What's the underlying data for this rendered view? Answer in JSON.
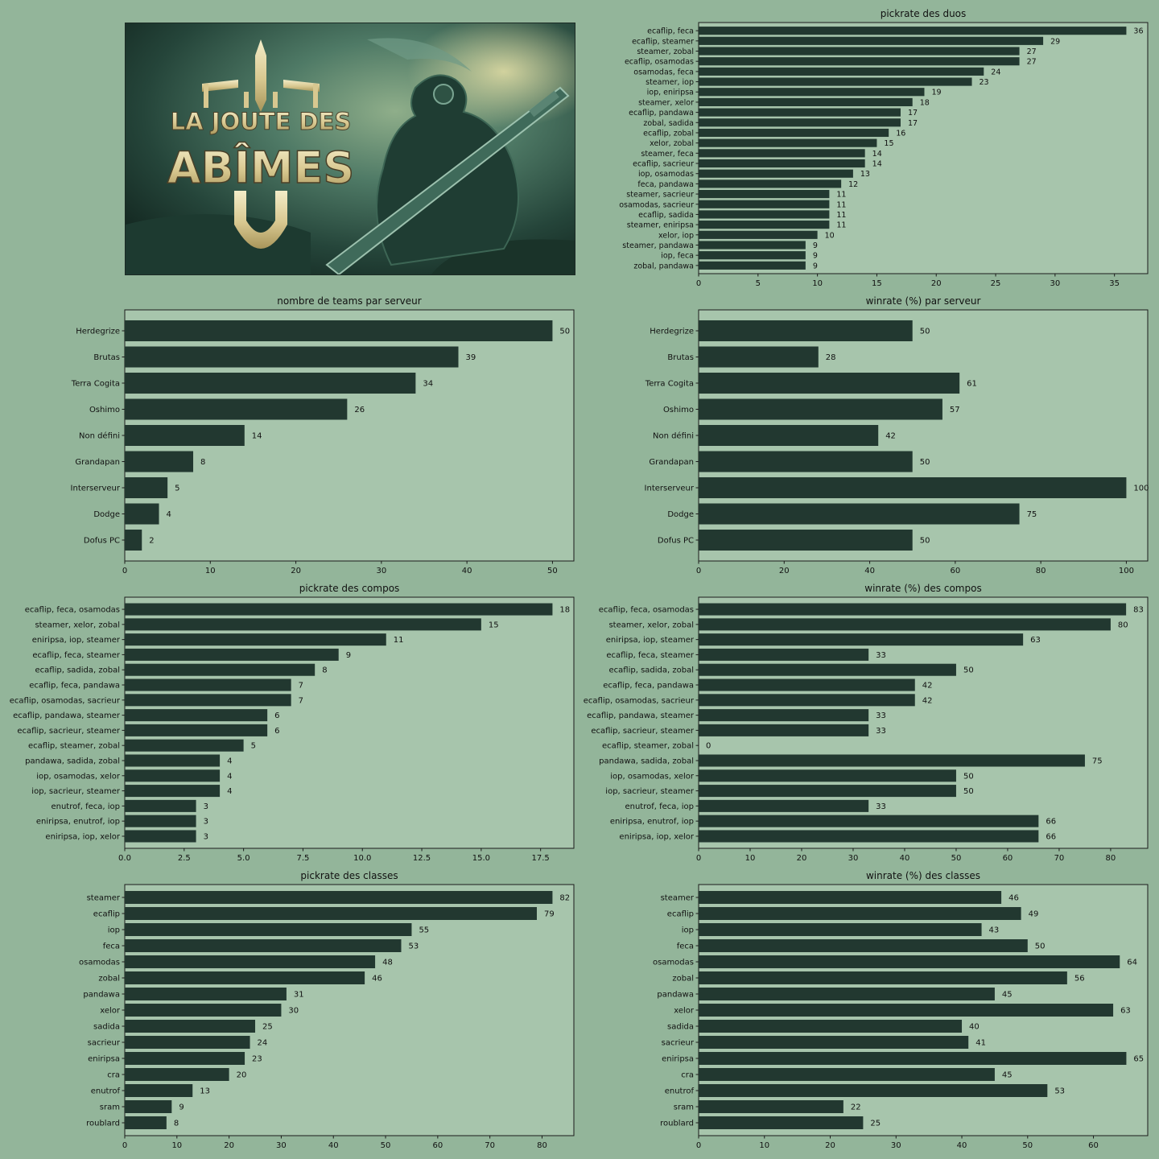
{
  "banner": {
    "logo_line1": "LA JOUTE DES",
    "logo_line2": "ABÎMES"
  },
  "colors": {
    "figure_bg": "#93b59a",
    "plot_bg": "#a7c5ac",
    "bar": "#223830",
    "text": "#111111"
  },
  "chart_data": [
    {
      "id": "duos-pickrate",
      "type": "bar",
      "orientation": "horizontal",
      "title": "pickrate des duos",
      "categories": [
        "ecaflip, feca",
        "ecaflip, steamer",
        "steamer, zobal",
        "ecaflip, osamodas",
        "osamodas, feca",
        "steamer, iop",
        "iop, eniripsa",
        "steamer, xelor",
        "ecaflip, pandawa",
        "zobal, sadida",
        "ecaflip, zobal",
        "xelor, zobal",
        "steamer, feca",
        "ecaflip, sacrieur",
        "iop, osamodas",
        "feca, pandawa",
        "steamer, sacrieur",
        "osamodas, sacrieur",
        "ecaflip, sadida",
        "steamer, eniripsa",
        "xelor, iop",
        "steamer, pandawa",
        "iop, feca",
        "zobal, pandawa"
      ],
      "values": [
        36,
        29,
        27,
        27,
        24,
        23,
        19,
        18,
        17,
        17,
        16,
        15,
        14,
        14,
        13,
        12,
        11,
        11,
        11,
        11,
        10,
        9,
        9,
        9
      ],
      "value_labels": [
        "36",
        "29",
        "27",
        "27",
        "24",
        "23",
        "19",
        "18",
        "17",
        "17",
        "16",
        "15",
        "14",
        "14",
        "13",
        "12",
        "11",
        "11",
        "11",
        "11",
        "10",
        "9",
        "9",
        "9"
      ],
      "xlim": [
        0,
        37.8
      ],
      "xticks": [
        0,
        5,
        10,
        15,
        20,
        25,
        30,
        35
      ],
      "xtick_labels": [
        "0",
        "5",
        "10",
        "15",
        "20",
        "25",
        "30",
        "35"
      ],
      "grid": false
    },
    {
      "id": "teams-per-server",
      "type": "bar",
      "orientation": "horizontal",
      "title": "nombre de teams par serveur",
      "categories": [
        "Herdegrize",
        "Brutas",
        "Terra Cogita",
        "Oshimo",
        "Non défini",
        "Grandapan",
        "Interserveur",
        "Dodge",
        "Dofus PC"
      ],
      "values": [
        50,
        39,
        34,
        26,
        14,
        8,
        5,
        4,
        2
      ],
      "value_labels": [
        "50",
        "39",
        "34",
        "26",
        "14",
        "8",
        "5",
        "4",
        "2"
      ],
      "xlim": [
        0,
        52.5
      ],
      "xticks": [
        0,
        10,
        20,
        30,
        40,
        50
      ],
      "xtick_labels": [
        "0",
        "10",
        "20",
        "30",
        "40",
        "50"
      ],
      "grid": false
    },
    {
      "id": "winrate-per-server",
      "type": "bar",
      "orientation": "horizontal",
      "title": "winrate (%) par serveur",
      "categories": [
        "Herdegrize",
        "Brutas",
        "Terra Cogita",
        "Oshimo",
        "Non défini",
        "Grandapan",
        "Interserveur",
        "Dodge",
        "Dofus PC"
      ],
      "values": [
        50,
        28,
        61,
        57,
        42,
        50,
        100,
        75,
        50
      ],
      "value_labels": [
        "50",
        "28",
        "61",
        "57",
        "42",
        "50",
        "100",
        "75",
        "50"
      ],
      "xlim": [
        0,
        105
      ],
      "xticks": [
        0,
        20,
        40,
        60,
        80,
        100
      ],
      "xtick_labels": [
        "0",
        "20",
        "40",
        "60",
        "80",
        "100"
      ],
      "grid": false
    },
    {
      "id": "compos-pickrate",
      "type": "bar",
      "orientation": "horizontal",
      "title": "pickrate des compos",
      "categories": [
        "ecaflip, feca, osamodas",
        "steamer, xelor, zobal",
        "eniripsa, iop, steamer",
        "ecaflip, feca, steamer",
        "ecaflip, sadida, zobal",
        "ecaflip, feca, pandawa",
        "ecaflip, osamodas, sacrieur",
        "ecaflip, pandawa, steamer",
        "ecaflip, sacrieur, steamer",
        "ecaflip, steamer, zobal",
        "pandawa, sadida, zobal",
        "iop, osamodas, xelor",
        "iop, sacrieur, steamer",
        "enutrof, feca, iop",
        "eniripsa, enutrof, iop",
        "eniripsa, iop, xelor"
      ],
      "values": [
        18,
        15,
        11,
        9,
        8,
        7,
        7,
        6,
        6,
        5,
        4,
        4,
        4,
        3,
        3,
        3
      ],
      "value_labels": [
        "18",
        "15",
        "11",
        "9",
        "8",
        "7",
        "7",
        "6",
        "6",
        "5",
        "4",
        "4",
        "4",
        "3",
        "3",
        "3"
      ],
      "xlim": [
        0,
        18.9
      ],
      "xticks": [
        0,
        2.5,
        5,
        7.5,
        10,
        12.5,
        15,
        17.5
      ],
      "xtick_labels": [
        "0.0",
        "2.5",
        "5.0",
        "7.5",
        "10.0",
        "12.5",
        "15.0",
        "17.5"
      ],
      "grid": false
    },
    {
      "id": "compos-winrate",
      "type": "bar",
      "orientation": "horizontal",
      "title": "winrate (%) des compos",
      "categories": [
        "ecaflip, feca, osamodas",
        "steamer, xelor, zobal",
        "eniripsa, iop, steamer",
        "ecaflip, feca, steamer",
        "ecaflip, sadida, zobal",
        "ecaflip, feca, pandawa",
        "ecaflip, osamodas, sacrieur",
        "ecaflip, pandawa, steamer",
        "ecaflip, sacrieur, steamer",
        "ecaflip, steamer, zobal",
        "pandawa, sadida, zobal",
        "iop, osamodas, xelor",
        "iop, sacrieur, steamer",
        "enutrof, feca, iop",
        "eniripsa, enutrof, iop",
        "eniripsa, iop, xelor"
      ],
      "values": [
        83,
        80,
        63,
        33,
        50,
        42,
        42,
        33,
        33,
        0,
        75,
        50,
        50,
        33,
        66,
        66
      ],
      "value_labels": [
        "83",
        "80",
        "63",
        "33",
        "50",
        "42",
        "42",
        "33",
        "33",
        "0",
        "75",
        "50",
        "50",
        "33",
        "66",
        "66"
      ],
      "xlim": [
        0,
        87.2
      ],
      "xticks": [
        0,
        10,
        20,
        30,
        40,
        50,
        60,
        70,
        80
      ],
      "xtick_labels": [
        "0",
        "10",
        "20",
        "30",
        "40",
        "50",
        "60",
        "70",
        "80"
      ],
      "grid": false
    },
    {
      "id": "classes-pickrate",
      "type": "bar",
      "orientation": "horizontal",
      "title": "pickrate des classes",
      "categories": [
        "steamer",
        "ecaflip",
        "iop",
        "feca",
        "osamodas",
        "zobal",
        "pandawa",
        "xelor",
        "sadida",
        "sacrieur",
        "eniripsa",
        "cra",
        "enutrof",
        "sram",
        "roublard"
      ],
      "values": [
        82,
        79,
        55,
        53,
        48,
        46,
        31,
        30,
        25,
        24,
        23,
        20,
        13,
        9,
        8
      ],
      "value_labels": [
        "82",
        "79",
        "55",
        "53",
        "48",
        "46",
        "31",
        "30",
        "25",
        "24",
        "23",
        "20",
        "13",
        "9",
        "8"
      ],
      "xlim": [
        0,
        86.1
      ],
      "xticks": [
        0,
        10,
        20,
        30,
        40,
        50,
        60,
        70,
        80
      ],
      "xtick_labels": [
        "0",
        "10",
        "20",
        "30",
        "40",
        "50",
        "60",
        "70",
        "80"
      ],
      "grid": false
    },
    {
      "id": "classes-winrate",
      "type": "bar",
      "orientation": "horizontal",
      "title": "winrate (%) des classes",
      "categories": [
        "steamer",
        "ecaflip",
        "iop",
        "feca",
        "osamodas",
        "zobal",
        "pandawa",
        "xelor",
        "sadida",
        "sacrieur",
        "eniripsa",
        "cra",
        "enutrof",
        "sram",
        "roublard"
      ],
      "values": [
        46,
        49,
        43,
        50,
        64,
        56,
        45,
        63,
        40,
        41,
        65,
        45,
        53,
        22,
        25
      ],
      "value_labels": [
        "46",
        "49",
        "43",
        "50",
        "64",
        "56",
        "45",
        "63",
        "40",
        "41",
        "65",
        "45",
        "53",
        "22",
        "25"
      ],
      "xlim": [
        0,
        68.25
      ],
      "xticks": [
        0,
        10,
        20,
        30,
        40,
        50,
        60
      ],
      "xtick_labels": [
        "0",
        "10",
        "20",
        "30",
        "40",
        "50",
        "60"
      ],
      "grid": false
    }
  ]
}
